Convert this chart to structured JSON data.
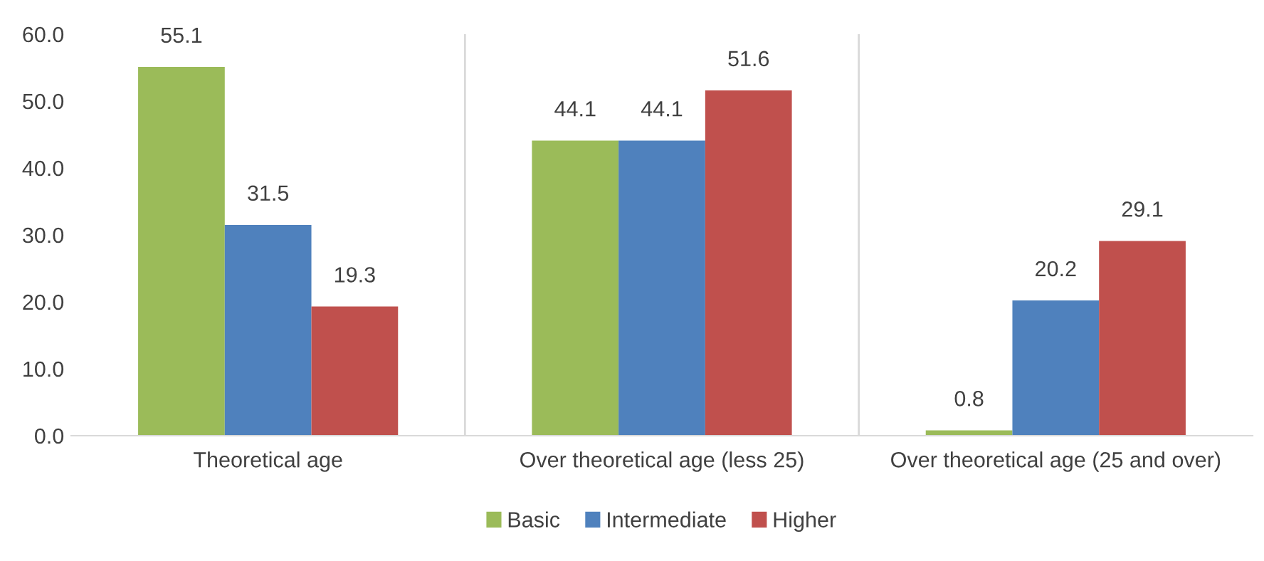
{
  "chart_data": {
    "type": "bar",
    "categories": [
      "Theoretical age",
      "Over theoretical age (less 25)",
      "Over theoretical age (25 and over)"
    ],
    "series": [
      {
        "name": "Basic",
        "color": "#9bbb59",
        "values": [
          55.1,
          44.1,
          0.8
        ]
      },
      {
        "name": "Intermediate",
        "color": "#4f81bd",
        "values": [
          31.5,
          44.1,
          20.2
        ]
      },
      {
        "name": "Higher",
        "color": "#c0504d",
        "values": [
          19.3,
          51.6,
          29.1
        ]
      }
    ],
    "ylim": [
      0,
      60
    ],
    "yticks": [
      {
        "value": 0,
        "label": "0.0"
      },
      {
        "value": 10,
        "label": "10.0"
      },
      {
        "value": 20,
        "label": "20.0"
      },
      {
        "value": 30,
        "label": "30.0"
      },
      {
        "value": 40,
        "label": "40.0"
      },
      {
        "value": 50,
        "label": "50.0"
      },
      {
        "value": 60,
        "label": "60.0"
      }
    ],
    "grid": "x",
    "legend": "bottom",
    "data_labels": true
  }
}
